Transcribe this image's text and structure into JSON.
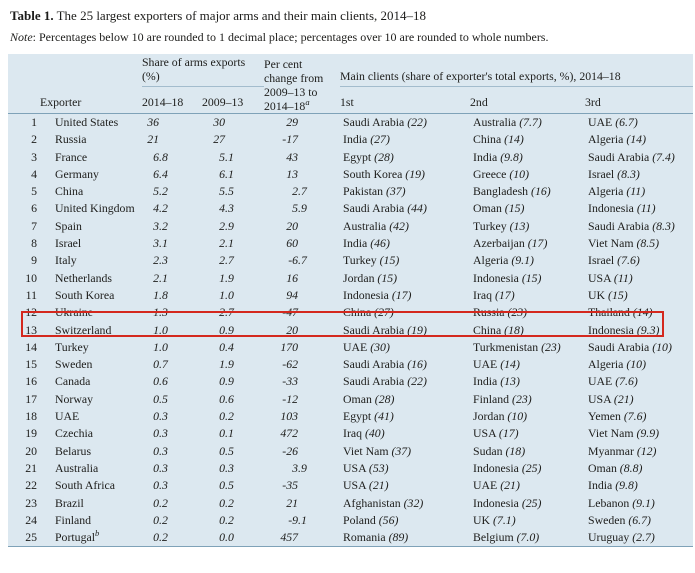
{
  "title": {
    "bold": "Table 1.",
    "rest": " The 25 largest exporters of major arms and their main clients, 2014–18"
  },
  "note": {
    "label": "Note",
    "rest": ": Percentages below 10 are rounded to 1 decimal place; percentages over 10 are rounded to whole numbers."
  },
  "colors": {
    "table_background": "#dce8f0",
    "heavy_rule": "#7fa2b8",
    "light_rule": "#a3bccd",
    "highlight_box": "#d4281e",
    "text": "#1d1d1b"
  },
  "table": {
    "header": {
      "exporter": "Exporter",
      "share_group": "Share of arms exports (%)",
      "col_2014_18": "2014–18",
      "col_2009_13": "2009–13",
      "pct_change_text": "Per cent change from 2009–13 to 2014–18",
      "pct_change_sup": "a",
      "clients_group": "Main clients (share of exporter's total exports, %), 2014–18",
      "client_cols": [
        "1st",
        "2nd",
        "3rd"
      ]
    },
    "highlight": {
      "row_rank": "12"
    },
    "rows": [
      {
        "rank": "1",
        "exporter": "United States",
        "sup": "",
        "s1": "36",
        "s2": "30",
        "pct": "29",
        "clients": [
          {
            "name": "Saudi Arabia",
            "share": "22"
          },
          {
            "name": "Australia",
            "share": "7.7"
          },
          {
            "name": "UAE",
            "share": "6.7"
          }
        ]
      },
      {
        "rank": "2",
        "exporter": "Russia",
        "sup": "",
        "s1": "21",
        "s2": "27",
        "pct": "-17",
        "clients": [
          {
            "name": "India",
            "share": "27"
          },
          {
            "name": "China",
            "share": "14"
          },
          {
            "name": "Algeria",
            "share": "14"
          }
        ]
      },
      {
        "rank": "3",
        "exporter": "France",
        "sup": "",
        "s1": "6.8",
        "s2": "5.1",
        "pct": "43",
        "clients": [
          {
            "name": "Egypt",
            "share": "28"
          },
          {
            "name": "India",
            "share": "9.8"
          },
          {
            "name": "Saudi Arabia",
            "share": "7.4"
          }
        ]
      },
      {
        "rank": "4",
        "exporter": "Germany",
        "sup": "",
        "s1": "6.4",
        "s2": "6.1",
        "pct": "13",
        "clients": [
          {
            "name": "South Korea",
            "share": "19"
          },
          {
            "name": "Greece",
            "share": "10"
          },
          {
            "name": "Israel",
            "share": "8.3"
          }
        ]
      },
      {
        "rank": "5",
        "exporter": "China",
        "sup": "",
        "s1": "5.2",
        "s2": "5.5",
        "pct": "2.7",
        "clients": [
          {
            "name": "Pakistan",
            "share": "37"
          },
          {
            "name": "Bangladesh",
            "share": "16"
          },
          {
            "name": "Algeria",
            "share": "11"
          }
        ]
      },
      {
        "rank": "6",
        "exporter": "United Kingdom",
        "sup": "",
        "s1": "4.2",
        "s2": "4.3",
        "pct": "5.9",
        "clients": [
          {
            "name": "Saudi Arabia",
            "share": "44"
          },
          {
            "name": "Oman",
            "share": "15"
          },
          {
            "name": "Indonesia",
            "share": "11"
          }
        ]
      },
      {
        "rank": "7",
        "exporter": "Spain",
        "sup": "",
        "s1": "3.2",
        "s2": "2.9",
        "pct": "20",
        "clients": [
          {
            "name": "Australia",
            "share": "42"
          },
          {
            "name": "Turkey",
            "share": "13"
          },
          {
            "name": "Saudi Arabia",
            "share": "8.3"
          }
        ]
      },
      {
        "rank": "8",
        "exporter": "Israel",
        "sup": "",
        "s1": "3.1",
        "s2": "2.1",
        "pct": "60",
        "clients": [
          {
            "name": "India",
            "share": "46"
          },
          {
            "name": "Azerbaijan",
            "share": "17"
          },
          {
            "name": "Viet Nam",
            "share": "8.5"
          }
        ]
      },
      {
        "rank": "9",
        "exporter": "Italy",
        "sup": "",
        "s1": "2.3",
        "s2": "2.7",
        "pct": "-6.7",
        "clients": [
          {
            "name": "Turkey",
            "share": "15"
          },
          {
            "name": "Algeria",
            "share": "9.1"
          },
          {
            "name": "Israel",
            "share": "7.6"
          }
        ]
      },
      {
        "rank": "10",
        "exporter": "Netherlands",
        "sup": "",
        "s1": "2.1",
        "s2": "1.9",
        "pct": "16",
        "clients": [
          {
            "name": "Jordan",
            "share": "15"
          },
          {
            "name": "Indonesia",
            "share": "15"
          },
          {
            "name": "USA",
            "share": "11"
          }
        ]
      },
      {
        "rank": "11",
        "exporter": "South Korea",
        "sup": "",
        "s1": "1.8",
        "s2": "1.0",
        "pct": "94",
        "clients": [
          {
            "name": "Indonesia",
            "share": "17"
          },
          {
            "name": "Iraq",
            "share": "17"
          },
          {
            "name": "UK",
            "share": "15"
          }
        ]
      },
      {
        "rank": "12",
        "exporter": "Ukraine",
        "sup": "",
        "s1": "1.3",
        "s2": "2.7",
        "pct": "-47",
        "clients": [
          {
            "name": "China",
            "share": "27"
          },
          {
            "name": "Russia",
            "share": "23"
          },
          {
            "name": "Thailand",
            "share": "14"
          }
        ]
      },
      {
        "rank": "13",
        "exporter": "Switzerland",
        "sup": "",
        "s1": "1.0",
        "s2": "0.9",
        "pct": "20",
        "clients": [
          {
            "name": "Saudi Arabia",
            "share": "19"
          },
          {
            "name": "China",
            "share": "18"
          },
          {
            "name": "Indonesia",
            "share": "9.3"
          }
        ]
      },
      {
        "rank": "14",
        "exporter": "Turkey",
        "sup": "",
        "s1": "1.0",
        "s2": "0.4",
        "pct": "170",
        "clients": [
          {
            "name": "UAE",
            "share": "30"
          },
          {
            "name": "Turkmenistan",
            "share": "23"
          },
          {
            "name": "Saudi Arabia",
            "share": "10"
          }
        ]
      },
      {
        "rank": "15",
        "exporter": "Sweden",
        "sup": "",
        "s1": "0.7",
        "s2": "1.9",
        "pct": "-62",
        "clients": [
          {
            "name": "Saudi Arabia",
            "share": "16"
          },
          {
            "name": "UAE",
            "share": "14"
          },
          {
            "name": "Algeria",
            "share": "10"
          }
        ]
      },
      {
        "rank": "16",
        "exporter": "Canada",
        "sup": "",
        "s1": "0.6",
        "s2": "0.9",
        "pct": "-33",
        "clients": [
          {
            "name": "Saudi Arabia",
            "share": "22"
          },
          {
            "name": "India",
            "share": "13"
          },
          {
            "name": "UAE",
            "share": "7.6"
          }
        ]
      },
      {
        "rank": "17",
        "exporter": "Norway",
        "sup": "",
        "s1": "0.5",
        "s2": "0.6",
        "pct": "-12",
        "clients": [
          {
            "name": "Oman",
            "share": "28"
          },
          {
            "name": "Finland",
            "share": "23"
          },
          {
            "name": "USA",
            "share": "21"
          }
        ]
      },
      {
        "rank": "18",
        "exporter": "UAE",
        "sup": "",
        "s1": "0.3",
        "s2": "0.2",
        "pct": "103",
        "clients": [
          {
            "name": "Egypt",
            "share": "41"
          },
          {
            "name": "Jordan",
            "share": "10"
          },
          {
            "name": "Yemen",
            "share": "7.6"
          }
        ]
      },
      {
        "rank": "19",
        "exporter": "Czechia",
        "sup": "",
        "s1": "0.3",
        "s2": "0.1",
        "pct": "472",
        "clients": [
          {
            "name": "Iraq",
            "share": "40"
          },
          {
            "name": "USA",
            "share": "17"
          },
          {
            "name": "Viet Nam",
            "share": "9.9"
          }
        ]
      },
      {
        "rank": "20",
        "exporter": "Belarus",
        "sup": "",
        "s1": "0.3",
        "s2": "0.5",
        "pct": "-26",
        "clients": [
          {
            "name": "Viet Nam",
            "share": "37"
          },
          {
            "name": "Sudan",
            "share": "18"
          },
          {
            "name": "Myanmar",
            "share": "12"
          }
        ]
      },
      {
        "rank": "21",
        "exporter": "Australia",
        "sup": "",
        "s1": "0.3",
        "s2": "0.3",
        "pct": "3.9",
        "clients": [
          {
            "name": "USA",
            "share": "53"
          },
          {
            "name": "Indonesia",
            "share": "25"
          },
          {
            "name": "Oman",
            "share": "8.8"
          }
        ]
      },
      {
        "rank": "22",
        "exporter": "South Africa",
        "sup": "",
        "s1": "0.3",
        "s2": "0.5",
        "pct": "-35",
        "clients": [
          {
            "name": "USA",
            "share": "21"
          },
          {
            "name": "UAE",
            "share": "21"
          },
          {
            "name": "India",
            "share": "9.8"
          }
        ]
      },
      {
        "rank": "23",
        "exporter": "Brazil",
        "sup": "",
        "s1": "0.2",
        "s2": "0.2",
        "pct": "21",
        "clients": [
          {
            "name": "Afghanistan",
            "share": "32"
          },
          {
            "name": "Indonesia",
            "share": "25"
          },
          {
            "name": "Lebanon",
            "share": "9.1"
          }
        ]
      },
      {
        "rank": "24",
        "exporter": "Finland",
        "sup": "",
        "s1": "0.2",
        "s2": "0.2",
        "pct": "-9.1",
        "clients": [
          {
            "name": "Poland",
            "share": "56"
          },
          {
            "name": "UK",
            "share": "7.1"
          },
          {
            "name": "Sweden",
            "share": "6.7"
          }
        ]
      },
      {
        "rank": "25",
        "exporter": "Portugal",
        "sup": "b",
        "s1": "0.2",
        "s2": "0.0",
        "pct": "457",
        "clients": [
          {
            "name": "Romania",
            "share": "89"
          },
          {
            "name": "Belgium",
            "share": "7.0"
          },
          {
            "name": "Uruguay",
            "share": "2.7"
          }
        ]
      }
    ]
  }
}
